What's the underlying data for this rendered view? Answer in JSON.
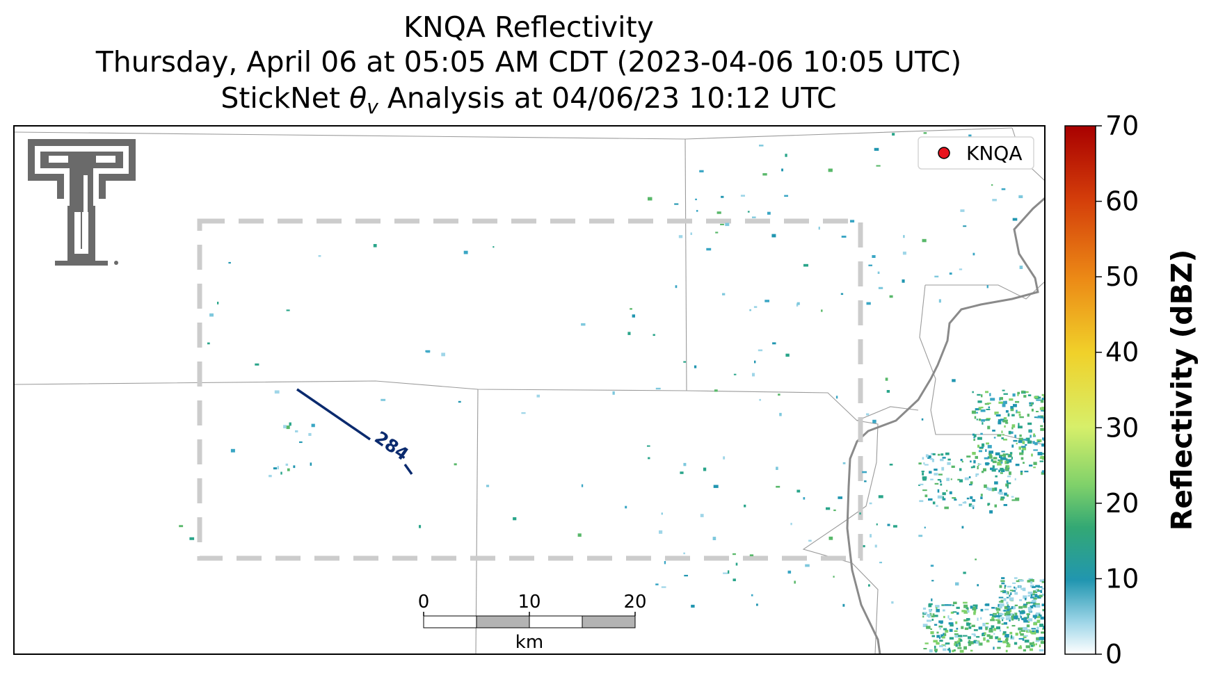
{
  "title": {
    "line1": "KNQA Reflectivity",
    "line2": "Thursday, April 06 at 05:05 AM CDT (2023-04-06 10:05 UTC)",
    "line3_prefix": "StickNet ",
    "line3_var": "θ",
    "line3_sub": "v",
    "line3_suffix": " Analysis at 04/06/23 10:12 UTC"
  },
  "legend": {
    "radar_label": "KNQA",
    "radar_color": "#e8141e"
  },
  "contour": {
    "label": "284",
    "color": "#0a2a6e"
  },
  "scale_bar": {
    "ticks": [
      "0",
      "10",
      "20"
    ],
    "unit": "km"
  },
  "colorbar": {
    "label": "Reflectivity (dBZ)",
    "ticks": [
      "0",
      "10",
      "20",
      "30",
      "40",
      "50",
      "60",
      "70"
    ],
    "min": 0,
    "max": 70,
    "colors": [
      "#ffffff",
      "#9fd6e8",
      "#2196b0",
      "#33a874",
      "#7fd16a",
      "#d7ef6a",
      "#f0d12a",
      "#ec8a16",
      "#d43e0a",
      "#a80000"
    ]
  },
  "logo": {
    "name": "Texas Tech double T"
  }
}
